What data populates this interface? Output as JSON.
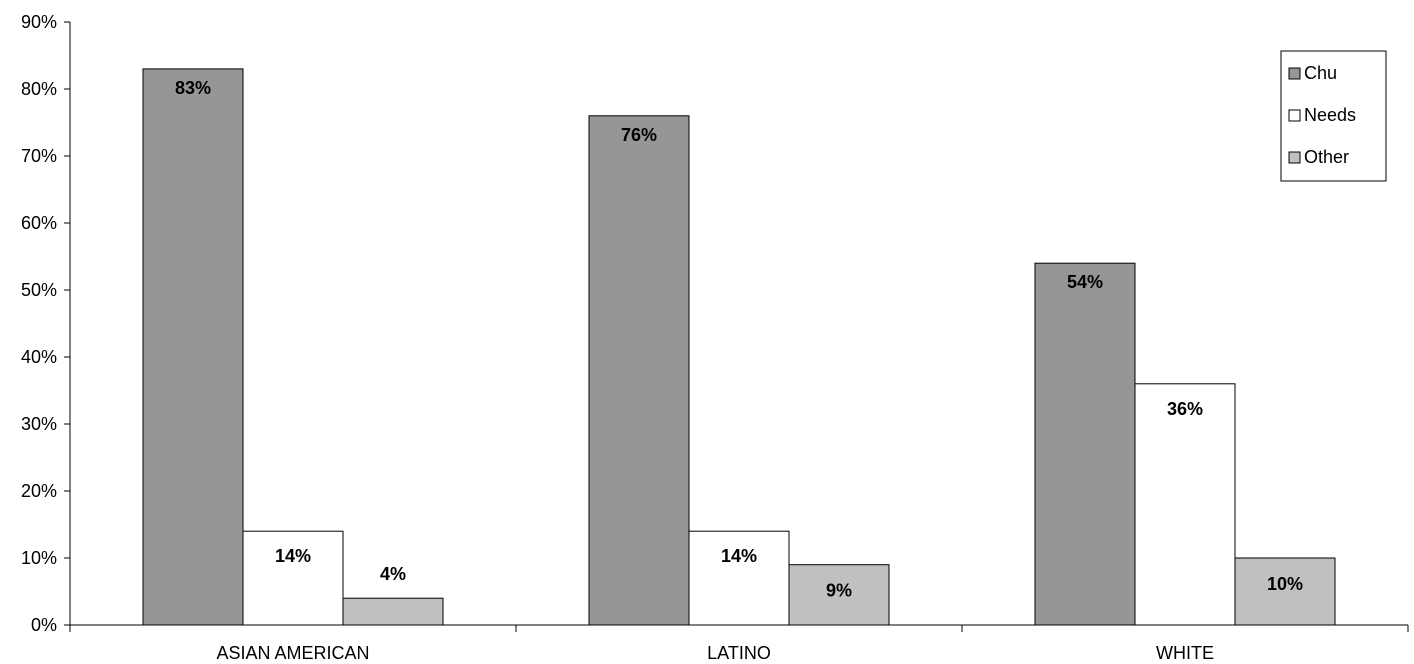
{
  "chart_data": {
    "type": "bar",
    "categories": [
      "ASIAN AMERICAN",
      "LATINO",
      "WHITE"
    ],
    "series": [
      {
        "name": "Chu",
        "values": [
          83,
          76,
          54
        ],
        "labels": [
          "83%",
          "76%",
          "54%"
        ],
        "color": "#969696"
      },
      {
        "name": "Needs",
        "values": [
          14,
          14,
          36
        ],
        "labels": [
          "14%",
          "14%",
          "36%"
        ],
        "color": "#ffffff"
      },
      {
        "name": "Other",
        "values": [
          4,
          9,
          10
        ],
        "labels": [
          "4%",
          "9%",
          "10%"
        ],
        "color": "#c0c0c0"
      }
    ],
    "yticks": [
      0,
      10,
      20,
      30,
      40,
      50,
      60,
      70,
      80,
      90
    ],
    "ytick_labels": [
      "0%",
      "10%",
      "20%",
      "30%",
      "40%",
      "50%",
      "60%",
      "70%",
      "80%",
      "90%"
    ],
    "ylim": [
      0,
      90
    ],
    "title": "",
    "xlabel": "",
    "ylabel": "",
    "grid": false,
    "legend_position": "top-right"
  }
}
